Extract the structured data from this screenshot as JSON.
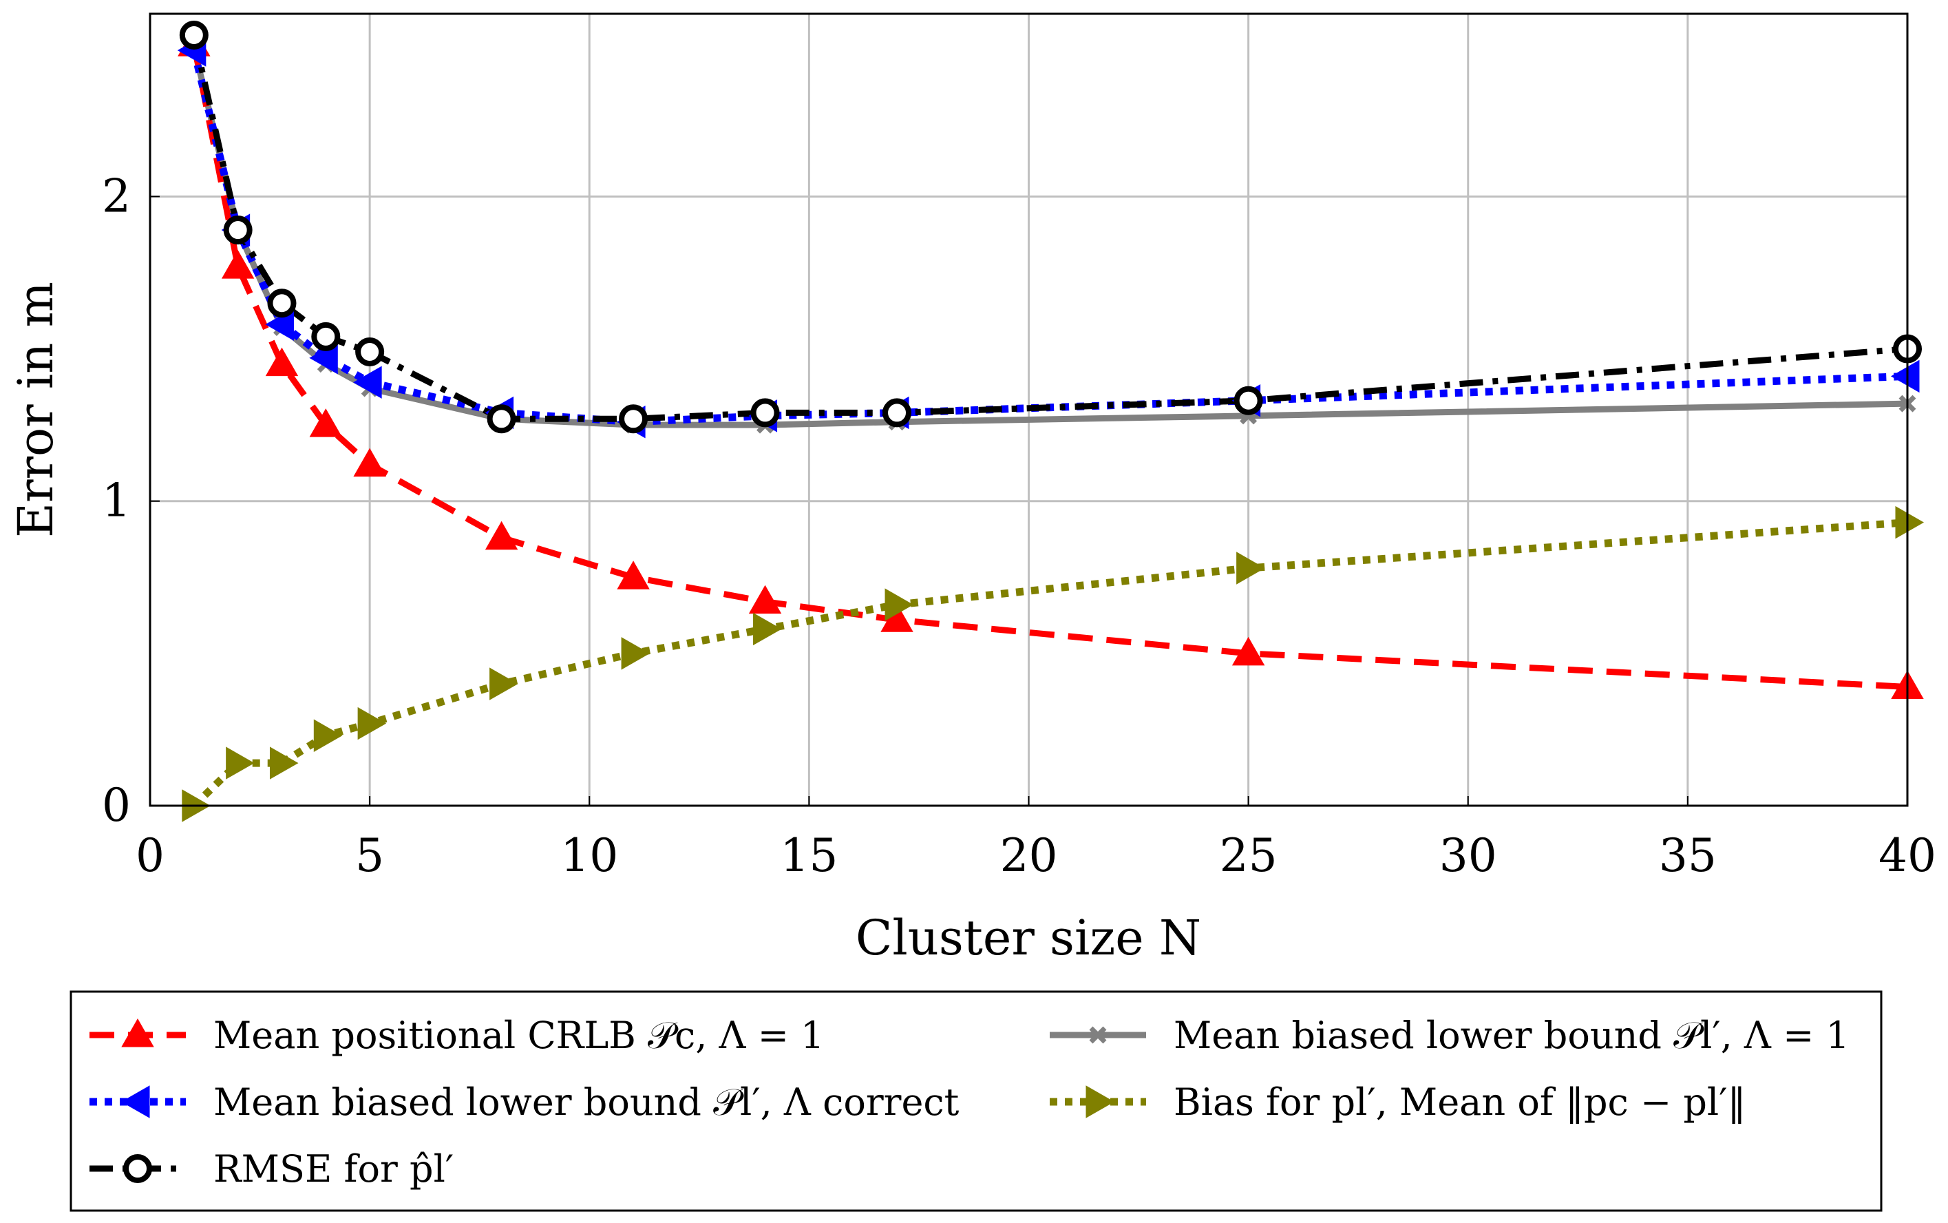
{
  "chart_data": {
    "type": "line",
    "title": "",
    "xlabel": "Cluster size N",
    "ylabel": "Error in m",
    "xlim": [
      0,
      40
    ],
    "ylim": [
      0,
      2.6
    ],
    "grid": true,
    "xticks": [
      0,
      5,
      10,
      15,
      20,
      25,
      30,
      35,
      40
    ],
    "xtick_labels": [
      "0",
      "5",
      "10",
      "15",
      "20",
      "25",
      "30",
      "35",
      "40"
    ],
    "yticks": [
      0,
      1,
      2
    ],
    "ytick_labels": [
      "0",
      "1",
      "2"
    ],
    "legend_position": "below",
    "series": [
      {
        "name": "Mean positional CRLB 𝒫c, Λ = 1",
        "color": "#ff0000",
        "style": "dashed",
        "marker": "triangle-up",
        "x": [
          1,
          2,
          3,
          4,
          5,
          8,
          11,
          14,
          17,
          25,
          40
        ],
        "y": [
          2.5,
          1.77,
          1.45,
          1.25,
          1.12,
          0.88,
          0.75,
          0.67,
          0.61,
          0.5,
          0.39
        ]
      },
      {
        "name": "Mean biased lower bound 𝒫l′, Λ = 1",
        "color": "#808080",
        "style": "solid",
        "marker": "x",
        "x": [
          1,
          2,
          3,
          4,
          5,
          8,
          11,
          14,
          17,
          25,
          40
        ],
        "y": [
          2.49,
          1.89,
          1.57,
          1.45,
          1.37,
          1.27,
          1.25,
          1.25,
          1.26,
          1.28,
          1.32
        ]
      },
      {
        "name": "Mean biased lower bound 𝒫l′, Λ correct",
        "color": "#0000ff",
        "style": "dotted",
        "marker": "triangle-left",
        "x": [
          1,
          2,
          3,
          4,
          5,
          8,
          11,
          14,
          17,
          25,
          40
        ],
        "y": [
          2.48,
          1.89,
          1.58,
          1.47,
          1.39,
          1.29,
          1.26,
          1.28,
          1.29,
          1.33,
          1.41
        ]
      },
      {
        "name": "Bias for pl′, Mean of ‖pc − pl′‖",
        "color": "#808000",
        "style": "dotted",
        "marker": "triangle-right",
        "x": [
          1,
          2,
          3,
          4,
          5,
          8,
          11,
          14,
          17,
          25,
          40
        ],
        "y": [
          0.0,
          0.14,
          0.14,
          0.23,
          0.27,
          0.4,
          0.5,
          0.58,
          0.66,
          0.78,
          0.93
        ]
      },
      {
        "name": "RMSE for p̂l′",
        "color": "#000000",
        "style": "dashdot",
        "marker": "circle",
        "x": [
          1,
          2,
          3,
          4,
          5,
          8,
          11,
          14,
          17,
          25,
          40
        ],
        "y": [
          2.53,
          1.89,
          1.65,
          1.54,
          1.49,
          1.27,
          1.27,
          1.29,
          1.29,
          1.33,
          1.5
        ]
      }
    ]
  },
  "legend": {
    "items": [
      {
        "text": "Mean positional CRLB 𝒫c, Λ = 1",
        "series": 0
      },
      {
        "text": "Mean biased lower bound 𝒫l′, Λ = 1",
        "series": 1
      },
      {
        "text": "Mean biased lower bound 𝒫l′, Λ correct",
        "series": 2
      },
      {
        "text": "Bias for pl′, Mean of ‖pc − pl′‖",
        "series": 3
      },
      {
        "text": "RMSE for p̂l′",
        "series": 4
      }
    ]
  }
}
